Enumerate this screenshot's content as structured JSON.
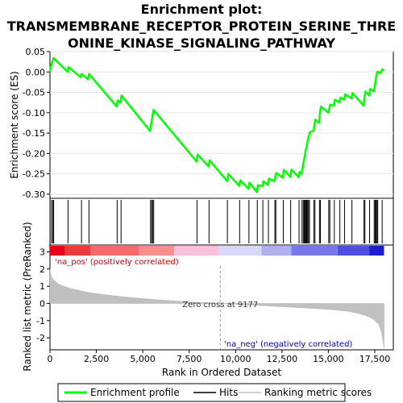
{
  "chart_data": {
    "type": "line",
    "title_line1": "Enrichment plot:",
    "title_line2": "TRANSMEMBRANE_RECEPTOR_PROTEIN_SERINE_THRE",
    "title_line3": "ONINE_KINASE_SIGNALING_PATHWAY",
    "es_panel": {
      "ylabel": "Enrichment score (ES)",
      "ylim": [
        -0.31,
        0.05
      ],
      "yticks": [
        0.05,
        0.0,
        -0.05,
        -0.1,
        -0.15,
        -0.2,
        -0.25,
        -0.3
      ],
      "ytick_labels": [
        "0.05",
        "0.00",
        "-0.05",
        "-0.10",
        "-0.15",
        "-0.20",
        "-0.25",
        "-0.30"
      ],
      "series_name": "Enrichment profile",
      "color": "#00ff00",
      "profile": [
        [
          0,
          0.0
        ],
        [
          60,
          0.015
        ],
        [
          150,
          0.028
        ],
        [
          200,
          0.034
        ],
        [
          960,
          0.0
        ],
        [
          1000,
          0.012
        ],
        [
          1650,
          -0.013
        ],
        [
          1700,
          -0.005
        ],
        [
          2050,
          -0.018
        ],
        [
          2100,
          -0.005
        ],
        [
          3600,
          -0.085
        ],
        [
          3650,
          -0.07
        ],
        [
          3800,
          -0.075
        ],
        [
          3850,
          -0.058
        ],
        [
          5400,
          -0.145
        ],
        [
          5450,
          -0.128
        ],
        [
          5520,
          -0.11
        ],
        [
          5580,
          -0.093
        ],
        [
          7900,
          -0.22
        ],
        [
          7950,
          -0.203
        ],
        [
          8550,
          -0.232
        ],
        [
          8600,
          -0.217
        ],
        [
          9550,
          -0.268
        ],
        [
          9600,
          -0.25
        ],
        [
          10200,
          -0.28
        ],
        [
          10250,
          -0.266
        ],
        [
          10700,
          -0.287
        ],
        [
          10750,
          -0.272
        ],
        [
          11150,
          -0.295
        ],
        [
          11200,
          -0.278
        ],
        [
          11450,
          -0.28
        ],
        [
          11500,
          -0.268
        ],
        [
          11750,
          -0.278
        ],
        [
          11800,
          -0.262
        ],
        [
          12100,
          -0.268
        ],
        [
          12150,
          -0.255
        ],
        [
          12200,
          -0.248
        ],
        [
          12550,
          -0.26
        ],
        [
          12600,
          -0.24
        ],
        [
          12950,
          -0.258
        ],
        [
          13000,
          -0.24
        ],
        [
          13400,
          -0.258
        ],
        [
          13450,
          -0.245
        ],
        [
          13550,
          -0.25
        ],
        [
          13600,
          -0.238
        ],
        [
          13650,
          -0.225
        ],
        [
          13700,
          -0.213
        ],
        [
          13750,
          -0.2
        ],
        [
          13800,
          -0.188
        ],
        [
          13850,
          -0.178
        ],
        [
          13900,
          -0.165
        ],
        [
          13950,
          -0.158
        ],
        [
          14000,
          -0.148
        ],
        [
          14200,
          -0.145
        ],
        [
          14250,
          -0.13
        ],
        [
          14300,
          -0.117
        ],
        [
          14500,
          -0.125
        ],
        [
          14550,
          -0.1
        ],
        [
          14600,
          -0.085
        ],
        [
          15000,
          -0.1
        ],
        [
          15050,
          -0.09
        ],
        [
          15100,
          -0.08
        ],
        [
          15300,
          -0.083
        ],
        [
          15350,
          -0.068
        ],
        [
          15600,
          -0.075
        ],
        [
          15650,
          -0.063
        ],
        [
          15850,
          -0.068
        ],
        [
          15900,
          -0.055
        ],
        [
          16250,
          -0.065
        ],
        [
          16300,
          -0.052
        ],
        [
          16900,
          -0.083
        ],
        [
          16950,
          -0.063
        ],
        [
          17000,
          -0.048
        ],
        [
          17200,
          -0.058
        ],
        [
          17250,
          -0.042
        ],
        [
          17450,
          -0.048
        ],
        [
          17500,
          -0.035
        ],
        [
          17550,
          -0.02
        ],
        [
          17600,
          -0.005
        ],
        [
          17650,
          0.001
        ],
        [
          17800,
          -0.003
        ],
        [
          17900,
          0.006
        ],
        [
          18000,
          0.004
        ]
      ]
    },
    "hits": [
      80,
      150,
      200,
      970,
      1700,
      2100,
      3620,
      3830,
      5420,
      5480,
      5530,
      5590,
      7920,
      8570,
      9560,
      10220,
      10720,
      11170,
      11470,
      11770,
      12120,
      12170,
      12570,
      12970,
      13420,
      13580,
      13650,
      13700,
      13740,
      13790,
      13830,
      13880,
      13930,
      13980,
      14220,
      14280,
      14520,
      14570,
      15020,
      15080,
      15320,
      15620,
      15870,
      16270,
      16920,
      16970,
      17220,
      17470,
      17520,
      17570,
      17620,
      17660,
      17900
    ],
    "rank_panel": {
      "ylabel": "Ranked list metric (PreRanked)",
      "ylim": [
        -2.7,
        3.4
      ],
      "yticks": [
        3,
        2,
        1,
        0,
        -1,
        -2
      ],
      "ytick_labels": [
        "3",
        "2",
        "1",
        "0",
        "-1",
        "-2"
      ],
      "metric_curve": [
        [
          0,
          2.0
        ],
        [
          60,
          1.6
        ],
        [
          200,
          1.35
        ],
        [
          500,
          1.1
        ],
        [
          1000,
          0.9
        ],
        [
          2000,
          0.65
        ],
        [
          3000,
          0.5
        ],
        [
          4000,
          0.38
        ],
        [
          5000,
          0.28
        ],
        [
          6000,
          0.2
        ],
        [
          7000,
          0.12
        ],
        [
          8000,
          0.06
        ],
        [
          9177,
          0.0
        ],
        [
          10000,
          -0.05
        ],
        [
          11000,
          -0.1
        ],
        [
          12000,
          -0.16
        ],
        [
          13000,
          -0.22
        ],
        [
          14000,
          -0.28
        ],
        [
          15000,
          -0.35
        ],
        [
          16000,
          -0.45
        ],
        [
          16500,
          -0.55
        ],
        [
          17000,
          -0.7
        ],
        [
          17400,
          -0.9
        ],
        [
          17700,
          -1.2
        ],
        [
          17850,
          -1.6
        ],
        [
          17950,
          -2.2
        ],
        [
          18000,
          -2.6
        ]
      ],
      "pos_label": "'na_pos' (positively correlated)",
      "neg_label": "'na_neg' (negatively correlated)",
      "zero_cross_label": "Zero cross at 9177",
      "zero_cross": 9177
    },
    "xlabel": "Rank in Ordered Dataset",
    "xlim": [
      0,
      18500
    ],
    "xticks": [
      0,
      2500,
      5000,
      7500,
      10000,
      12500,
      15000,
      17500
    ],
    "xtick_labels": [
      "0",
      "2,500",
      "5,000",
      "7,500",
      "10,000",
      "12,500",
      "15,000",
      "17,500"
    ],
    "color_bar": {
      "segments": [
        {
          "from": 0,
          "to": 800,
          "color": "#e8001a"
        },
        {
          "from": 800,
          "to": 2200,
          "color": "#f03a3a"
        },
        {
          "from": 2200,
          "to": 4800,
          "color": "#f56a6a"
        },
        {
          "from": 4800,
          "to": 6700,
          "color": "#f88f8f"
        },
        {
          "from": 6700,
          "to": 9100,
          "color": "#fbc0dc"
        },
        {
          "from": 9100,
          "to": 11400,
          "color": "#d8d8f8"
        },
        {
          "from": 11400,
          "to": 13000,
          "color": "#b0b0f0"
        },
        {
          "from": 13000,
          "to": 15500,
          "color": "#7878ea"
        },
        {
          "from": 15500,
          "to": 17200,
          "color": "#4f4fdf"
        },
        {
          "from": 17200,
          "to": 18000,
          "color": "#1e1ec8"
        }
      ]
    },
    "legend": {
      "items": [
        {
          "label": "Enrichment profile",
          "color": "#00ff00"
        },
        {
          "label": "Hits",
          "color": "#000000"
        },
        {
          "label": "Ranking metric scores",
          "color": "#c0c0c0"
        }
      ]
    }
  }
}
